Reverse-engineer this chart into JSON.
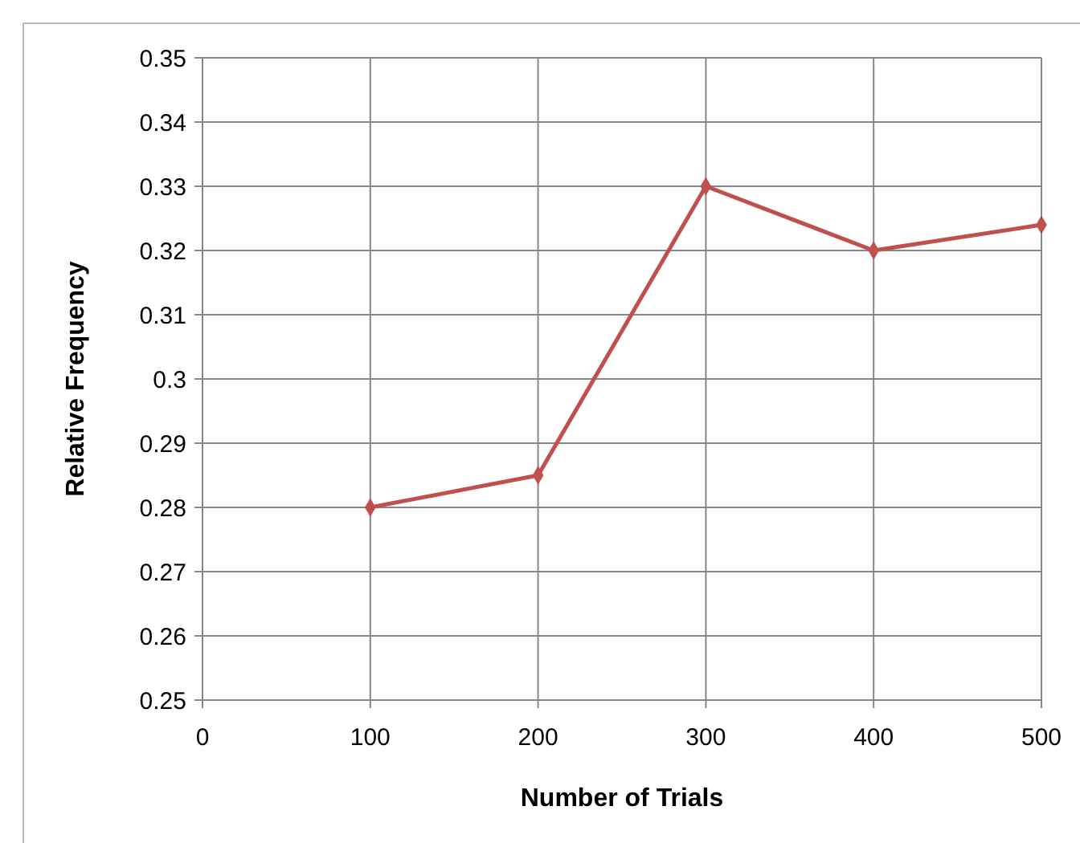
{
  "chart_data": {
    "type": "line",
    "xlabel": "Number of Trials",
    "ylabel": "Relative Frequency",
    "x": [
      100,
      200,
      300,
      400,
      500
    ],
    "series": [
      {
        "color": "#c0504d",
        "values": [
          0.28,
          0.285,
          0.33,
          0.32,
          0.324
        ]
      }
    ],
    "xlim": [
      0,
      500
    ],
    "xticks": [
      0,
      100,
      200,
      300,
      400,
      500
    ],
    "ylim": [
      0.25,
      0.35
    ],
    "yticks": [
      0.25,
      0.26,
      0.27,
      0.28,
      0.29,
      0.3,
      0.31,
      0.32,
      0.33,
      0.34,
      0.35
    ],
    "grid": true,
    "marker": "diamond",
    "line_style": "solid"
  }
}
